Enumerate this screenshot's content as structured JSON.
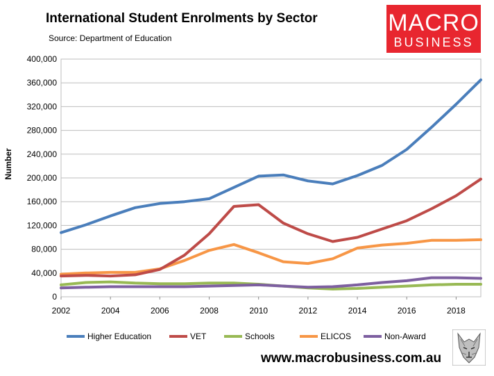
{
  "header": {
    "title": "International Student Enrolments by Sector",
    "subtitle": "Source: Department of Education"
  },
  "logo": {
    "line1": "MACRO",
    "line2": "BUSINESS",
    "color": "#e8262f"
  },
  "footer": {
    "url": "www.macrobusiness.com.au"
  },
  "chart_data": {
    "type": "line",
    "title": "International Student Enrolments by Sector",
    "xlabel": "",
    "ylabel": "Number",
    "xlim": [
      2002,
      2019
    ],
    "ylim": [
      0,
      400000
    ],
    "x_ticks": [
      2002,
      2004,
      2006,
      2008,
      2010,
      2012,
      2014,
      2016,
      2018
    ],
    "y_ticks": [
      0,
      40000,
      80000,
      120000,
      160000,
      200000,
      240000,
      280000,
      320000,
      360000,
      400000
    ],
    "y_tick_labels": [
      "0",
      "40,000",
      "80,000",
      "120,000",
      "160,000",
      "200,000",
      "240,000",
      "280,000",
      "320,000",
      "360,000",
      "400,000"
    ],
    "x_tick_labels": [
      "2002",
      "2004",
      "2006",
      "2008",
      "2010",
      "2012",
      "2014",
      "2016",
      "2018"
    ],
    "grid": "horizontal",
    "legend_position": "bottom",
    "x": [
      2002,
      2003,
      2004,
      2005,
      2006,
      2007,
      2008,
      2009,
      2010,
      2011,
      2012,
      2013,
      2014,
      2015,
      2016,
      2017,
      2018,
      2019
    ],
    "series": [
      {
        "name": "Higher Education",
        "color": "#4a7ebb",
        "values": [
          108000,
          121000,
          136000,
          150000,
          157000,
          160000,
          165000,
          184000,
          203000,
          205000,
          195000,
          190000,
          204000,
          221000,
          248000,
          285000,
          324000,
          365000
        ]
      },
      {
        "name": "VET",
        "color": "#be4b48",
        "values": [
          35000,
          36000,
          35000,
          37000,
          46000,
          70000,
          106000,
          152000,
          155000,
          124000,
          106000,
          93000,
          100000,
          114000,
          128000,
          148000,
          170000,
          198000
        ]
      },
      {
        "name": "Schools",
        "color": "#98b954",
        "values": [
          20000,
          24000,
          25000,
          23000,
          22000,
          22000,
          23000,
          23000,
          21000,
          18000,
          15000,
          13000,
          14000,
          16000,
          18000,
          20000,
          21000,
          21000
        ]
      },
      {
        "name": "ELICOS",
        "color": "#f79646",
        "values": [
          38000,
          40000,
          41000,
          41000,
          47000,
          61000,
          78000,
          88000,
          74000,
          59000,
          56000,
          64000,
          82000,
          87000,
          90000,
          95000,
          95000,
          96000
        ]
      },
      {
        "name": "Non-Award",
        "color": "#7d5fa0",
        "values": [
          15000,
          16000,
          17000,
          17000,
          17000,
          17000,
          18000,
          19000,
          20000,
          18000,
          16000,
          17000,
          20000,
          24000,
          27000,
          32000,
          32000,
          31000
        ]
      }
    ]
  }
}
